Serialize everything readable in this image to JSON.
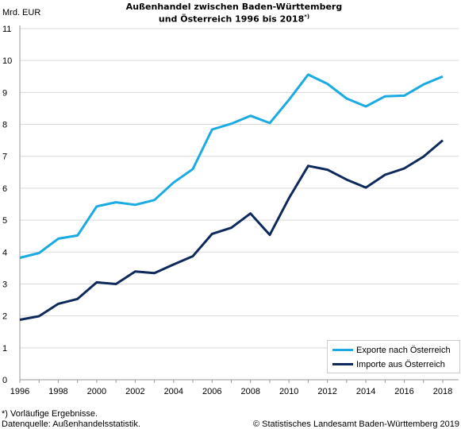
{
  "title_line1": "Außenhandel zwischen Baden-Württemberg",
  "title_line2": "und Österreich 1996 bis 2018",
  "title_footnote_mark": "*)",
  "y_unit": "Mrd. EUR",
  "footnote": "*) Vorläufige Ergebnisse.",
  "source": "Datenquelle: Außenhandelsstatistik.",
  "copyright": "© Statistisches Landesamt Baden-Württemberg 2019",
  "colors": {
    "exports": "#1aabe2",
    "imports": "#0e2a5c",
    "grid": "#d9d9d9",
    "axis": "#999999"
  },
  "chart_data": {
    "type": "line",
    "title": "Außenhandel zwischen Baden-Württemberg und Österreich 1996 bis 2018*)",
    "ylabel": "Mrd. EUR",
    "xlim": [
      1996,
      2018
    ],
    "ylim": [
      0,
      11
    ],
    "x_ticks": [
      1996,
      1998,
      2000,
      2002,
      2004,
      2006,
      2008,
      2010,
      2012,
      2014,
      2016,
      2018
    ],
    "y_ticks": [
      0,
      1,
      2,
      3,
      4,
      5,
      6,
      7,
      8,
      9,
      10,
      11
    ],
    "grid": "horizontal",
    "legend": "bottom-right",
    "x": [
      1996,
      1997,
      1998,
      1999,
      2000,
      2001,
      2002,
      2003,
      2004,
      2005,
      2006,
      2007,
      2008,
      2009,
      2010,
      2011,
      2012,
      2013,
      2014,
      2015,
      2016,
      2017,
      2018
    ],
    "series": [
      {
        "name": "Exporte nach Österreich",
        "color": "#1aabe2",
        "values": [
          3.82,
          3.97,
          4.42,
          4.52,
          5.43,
          5.56,
          5.48,
          5.63,
          6.18,
          6.6,
          7.84,
          8.02,
          8.27,
          8.04,
          8.77,
          9.56,
          9.27,
          8.81,
          8.56,
          8.88,
          8.9,
          9.25,
          9.5
        ]
      },
      {
        "name": "Importe aus Österreich",
        "color": "#0e2a5c",
        "values": [
          1.88,
          1.99,
          2.38,
          2.53,
          3.05,
          3.0,
          3.39,
          3.34,
          3.61,
          3.87,
          4.57,
          4.76,
          5.21,
          4.54,
          5.69,
          6.7,
          6.58,
          6.27,
          6.02,
          6.42,
          6.62,
          6.99,
          7.5
        ]
      }
    ]
  }
}
